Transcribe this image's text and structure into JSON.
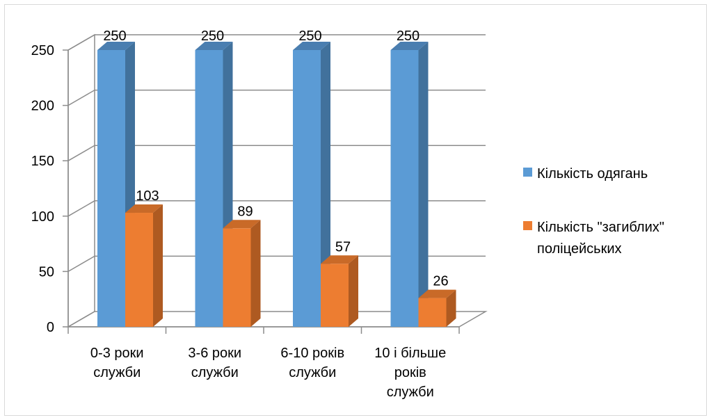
{
  "chart_data": {
    "type": "bar",
    "categories": [
      [
        "0-3 роки",
        "служби"
      ],
      [
        "3-6 роки",
        "служби"
      ],
      [
        "6-10 років",
        "служби"
      ],
      [
        "10 і більше",
        "років",
        "служби"
      ]
    ],
    "series": [
      {
        "name": "Кількість одягань",
        "values": [
          250,
          250,
          250,
          250
        ],
        "color": "#5B9BD5",
        "side_color": "#41719C",
        "top_color": "#4A7EB0"
      },
      {
        "name": "Кількість \"загиблих\" поліцейських",
        "values": [
          103,
          89,
          57,
          26
        ],
        "color": "#ED7D31",
        "side_color": "#AE5A21",
        "top_color": "#C96A28"
      }
    ],
    "legend_lines": [
      [
        "Кількість одягань"
      ],
      [
        "Кількість \"загиблих\"",
        "поліцейських"
      ]
    ],
    "ylim": [
      0,
      250
    ],
    "yticks": [
      0,
      50,
      100,
      150,
      200,
      250
    ],
    "grid": true,
    "legend_position": "right",
    "title": "",
    "xlabel": "",
    "ylabel": ""
  }
}
